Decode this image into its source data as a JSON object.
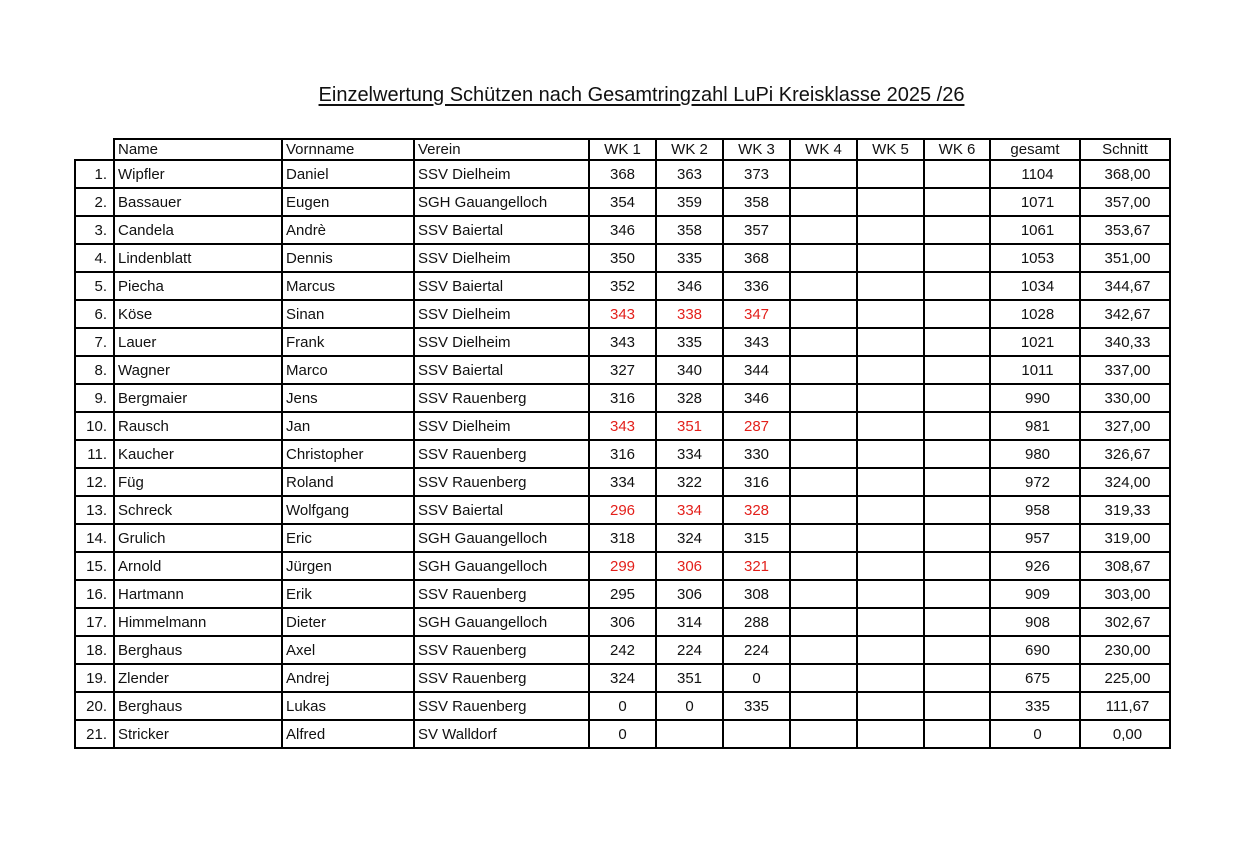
{
  "title": "Einzelwertung Schützen nach Gesamtringzahl LuPi Kreisklasse 2025 /26",
  "colors": {
    "highlight_red": "#e3201b",
    "grid": "#000000"
  },
  "columns": [
    "",
    "Name",
    "Vornname",
    "Verein",
    "WK 1",
    "WK 2",
    "WK 3",
    "WK 4",
    "WK 5",
    "WK 6",
    "gesamt",
    "Schnitt"
  ],
  "rows": [
    {
      "rank": "1.",
      "name": "Wipfler",
      "vorname": "Daniel",
      "verein": "SSV Dielheim",
      "wk": [
        "368",
        "363",
        "373",
        "",
        "",
        ""
      ],
      "gesamt": "1104",
      "schnitt": "368,00",
      "red": false
    },
    {
      "rank": "2.",
      "name": "Bassauer",
      "vorname": "Eugen",
      "verein": "SGH Gauangelloch",
      "wk": [
        "354",
        "359",
        "358",
        "",
        "",
        ""
      ],
      "gesamt": "1071",
      "schnitt": "357,00",
      "red": false
    },
    {
      "rank": "3.",
      "name": "Candela",
      "vorname": "Andrè",
      "verein": "SSV Baiertal",
      "wk": [
        "346",
        "358",
        "357",
        "",
        "",
        ""
      ],
      "gesamt": "1061",
      "schnitt": "353,67",
      "red": false
    },
    {
      "rank": "4.",
      "name": "Lindenblatt",
      "vorname": "Dennis",
      "verein": "SSV Dielheim",
      "wk": [
        "350",
        "335",
        "368",
        "",
        "",
        ""
      ],
      "gesamt": "1053",
      "schnitt": "351,00",
      "red": false
    },
    {
      "rank": "5.",
      "name": "Piecha",
      "vorname": "Marcus",
      "verein": "SSV Baiertal",
      "wk": [
        "352",
        "346",
        "336",
        "",
        "",
        ""
      ],
      "gesamt": "1034",
      "schnitt": "344,67",
      "red": false
    },
    {
      "rank": "6.",
      "name": "Köse",
      "vorname": "Sinan",
      "verein": "SSV Dielheim",
      "wk": [
        "343",
        "338",
        "347",
        "",
        "",
        ""
      ],
      "gesamt": "1028",
      "schnitt": "342,67",
      "red": true
    },
    {
      "rank": "7.",
      "name": "Lauer",
      "vorname": "Frank",
      "verein": "SSV Dielheim",
      "wk": [
        "343",
        "335",
        "343",
        "",
        "",
        ""
      ],
      "gesamt": "1021",
      "schnitt": "340,33",
      "red": false
    },
    {
      "rank": "8.",
      "name": "Wagner",
      "vorname": "Marco",
      "verein": "SSV Baiertal",
      "wk": [
        "327",
        "340",
        "344",
        "",
        "",
        ""
      ],
      "gesamt": "1011",
      "schnitt": "337,00",
      "red": false
    },
    {
      "rank": "9.",
      "name": "Bergmaier",
      "vorname": "Jens",
      "verein": "SSV Rauenberg",
      "wk": [
        "316",
        "328",
        "346",
        "",
        "",
        ""
      ],
      "gesamt": "990",
      "schnitt": "330,00",
      "red": false
    },
    {
      "rank": "10.",
      "name": "Rausch",
      "vorname": "Jan",
      "verein": "SSV Dielheim",
      "wk": [
        "343",
        "351",
        "287",
        "",
        "",
        ""
      ],
      "gesamt": "981",
      "schnitt": "327,00",
      "red": true
    },
    {
      "rank": "11.",
      "name": "Kaucher",
      "vorname": "Christopher",
      "verein": "SSV Rauenberg",
      "wk": [
        "316",
        "334",
        "330",
        "",
        "",
        ""
      ],
      "gesamt": "980",
      "schnitt": "326,67",
      "red": false
    },
    {
      "rank": "12.",
      "name": "Füg",
      "vorname": "Roland",
      "verein": "SSV Rauenberg",
      "wk": [
        "334",
        "322",
        "316",
        "",
        "",
        ""
      ],
      "gesamt": "972",
      "schnitt": "324,00",
      "red": false
    },
    {
      "rank": "13.",
      "name": "Schreck",
      "vorname": "Wolfgang",
      "verein": "SSV Baiertal",
      "wk": [
        "296",
        "334",
        "328",
        "",
        "",
        ""
      ],
      "gesamt": "958",
      "schnitt": "319,33",
      "red": true
    },
    {
      "rank": "14.",
      "name": "Grulich",
      "vorname": "Eric",
      "verein": "SGH Gauangelloch",
      "wk": [
        "318",
        "324",
        "315",
        "",
        "",
        ""
      ],
      "gesamt": "957",
      "schnitt": "319,00",
      "red": false
    },
    {
      "rank": "15.",
      "name": "Arnold",
      "vorname": "Jürgen",
      "verein": "SGH Gauangelloch",
      "wk": [
        "299",
        "306",
        "321",
        "",
        "",
        ""
      ],
      "gesamt": "926",
      "schnitt": "308,67",
      "red": true
    },
    {
      "rank": "16.",
      "name": "Hartmann",
      "vorname": "Erik",
      "verein": "SSV Rauenberg",
      "wk": [
        "295",
        "306",
        "308",
        "",
        "",
        ""
      ],
      "gesamt": "909",
      "schnitt": "303,00",
      "red": false
    },
    {
      "rank": "17.",
      "name": "Himmelmann",
      "vorname": "Dieter",
      "verein": "SGH Gauangelloch",
      "wk": [
        "306",
        "314",
        "288",
        "",
        "",
        ""
      ],
      "gesamt": "908",
      "schnitt": "302,67",
      "red": false
    },
    {
      "rank": "18.",
      "name": "Berghaus",
      "vorname": "Axel",
      "verein": "SSV Rauenberg",
      "wk": [
        "242",
        "224",
        "224",
        "",
        "",
        ""
      ],
      "gesamt": "690",
      "schnitt": "230,00",
      "red": false
    },
    {
      "rank": "19.",
      "name": "Zlender",
      "vorname": "Andrej",
      "verein": "SSV Rauenberg",
      "wk": [
        "324",
        "351",
        "0",
        "",
        "",
        ""
      ],
      "gesamt": "675",
      "schnitt": "225,00",
      "red": false
    },
    {
      "rank": "20.",
      "name": "Berghaus",
      "vorname": "Lukas",
      "verein": "SSV Rauenberg",
      "wk": [
        "0",
        "0",
        "335",
        "",
        "",
        ""
      ],
      "gesamt": "335",
      "schnitt": "111,67",
      "red": false
    },
    {
      "rank": "21.",
      "name": "Stricker",
      "vorname": "Alfred",
      "verein": "SV Walldorf",
      "wk": [
        "0",
        "",
        "",
        "",
        "",
        ""
      ],
      "gesamt": "0",
      "schnitt": "0,00",
      "red": false
    }
  ]
}
